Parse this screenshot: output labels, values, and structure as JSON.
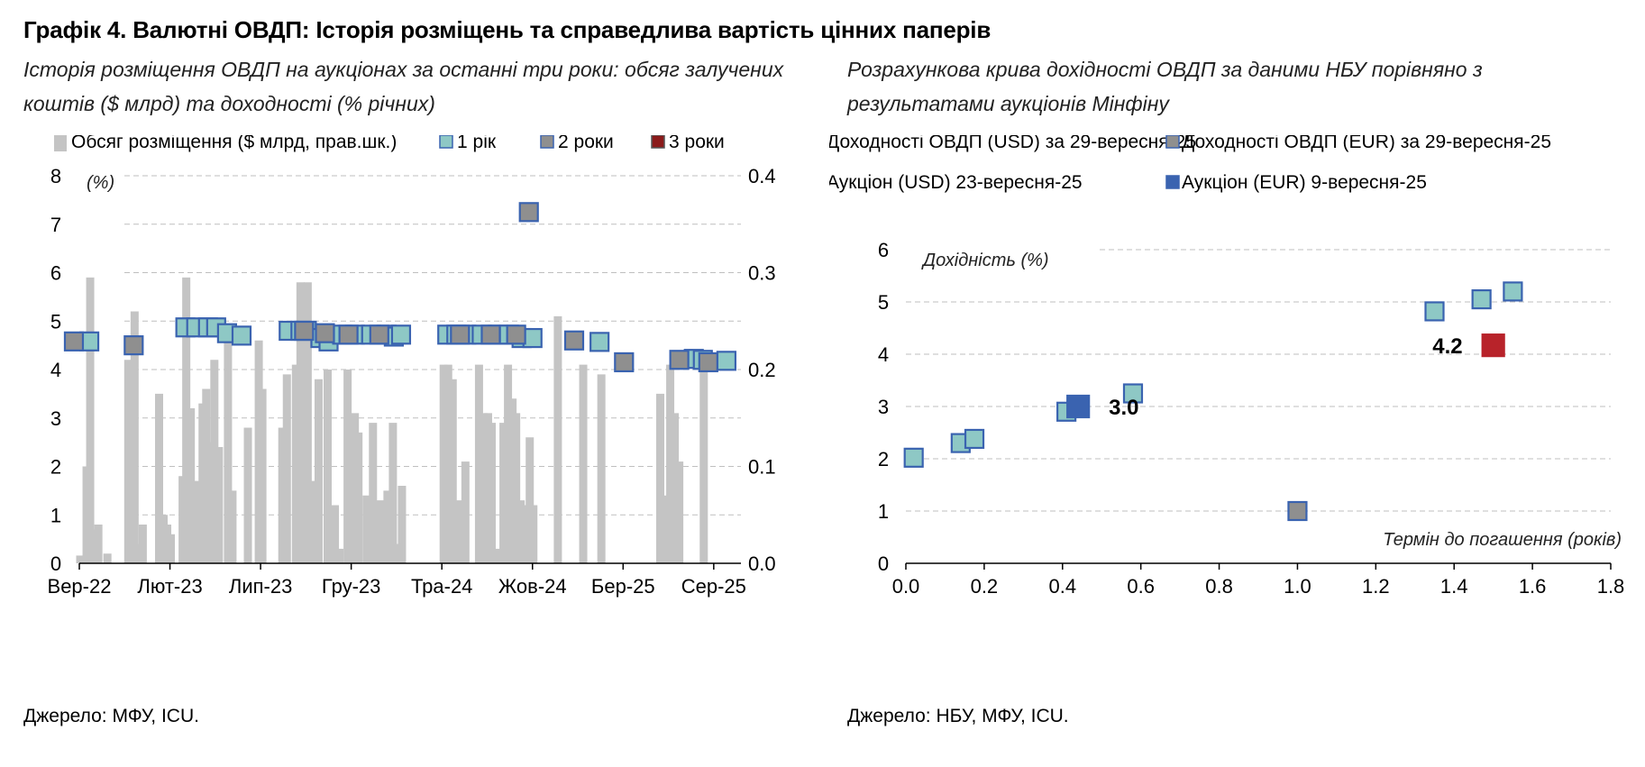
{
  "title": "Графік 4. Валютні ОВДП: Історія розміщень та справедлива вартість цінних паперів",
  "left": {
    "subtitle_line1": "Історія розміщення ОВДП на аукціонах за останні три роки: обсяг залучених",
    "subtitle_line2": "коштів ($ млрд) та доходності (% річних)",
    "source": "Джерело: МФУ, ICU.",
    "colors": {
      "bars": "#c4c4c4",
      "y1": "#8ec8c5",
      "y2": "#8f8f8f",
      "y3": "#8b1a1a",
      "edge": "#3a63b0",
      "grid": "#bfbfbf"
    }
  },
  "right": {
    "subtitle_line1": "Розрахункова крива дохідності ОВДП за даними НБУ порівняно з",
    "subtitle_line2": "результатами аукціонів Мінфіну",
    "source": "Джерело: НБУ, МФУ, ICU.",
    "colors": {
      "usd": "#8ec8c5",
      "eur": "#8f8f8f",
      "auc_usd": "#b8232a",
      "auc_eur": "#3a63b0",
      "edge": "#3a63b0",
      "grid": "#bfbfbf"
    }
  },
  "chart_data": [
    {
      "type": "bar+scatter",
      "legend": [
        "Обсяг розміщення ($ млрд, прав.шк.)",
        "1 рік",
        "2 роки",
        "3 роки"
      ],
      "legend_position": "top",
      "y_left_label": "(%)",
      "y_left_range": [
        0,
        8
      ],
      "y_left_ticks": [
        "0",
        "1",
        "2",
        "3",
        "4",
        "5",
        "6",
        "7",
        "8"
      ],
      "y_right_range": [
        0,
        0.4
      ],
      "y_right_ticks": [
        "0.0",
        "0.1",
        "0.2",
        "0.3",
        "0.4"
      ],
      "x_range": [
        0,
        36.5
      ],
      "x_ticks": [
        {
          "x": 0,
          "label": "Вер-22"
        },
        {
          "x": 5,
          "label": "Лют-23"
        },
        {
          "x": 10,
          "label": "Лип-23"
        },
        {
          "x": 15,
          "label": "Гру-23"
        },
        {
          "x": 20,
          "label": "Тра-24"
        },
        {
          "x": 25,
          "label": "Жов-24"
        },
        {
          "x": 30,
          "label": "Бер-25"
        },
        {
          "x": 35,
          "label": "Сер-25"
        }
      ],
      "grid": "horizontal dashed",
      "volume_bars": [
        {
          "x": 0.05,
          "v": 0.008
        },
        {
          "x": 0.4,
          "v": 0.1
        },
        {
          "x": 0.6,
          "v": 0.295
        },
        {
          "x": 0.85,
          "v": 0.035
        },
        {
          "x": 1.05,
          "v": 0.04
        },
        {
          "x": 1.55,
          "v": 0.01
        },
        {
          "x": 2.7,
          "v": 0.21
        },
        {
          "x": 3.05,
          "v": 0.26
        },
        {
          "x": 3.25,
          "v": 0.02
        },
        {
          "x": 3.5,
          "v": 0.04
        },
        {
          "x": 4.4,
          "v": 0.175
        },
        {
          "x": 4.65,
          "v": 0.05
        },
        {
          "x": 4.85,
          "v": 0.04
        },
        {
          "x": 5.05,
          "v": 0.03
        },
        {
          "x": 5.7,
          "v": 0.09
        },
        {
          "x": 5.9,
          "v": 0.295
        },
        {
          "x": 6.15,
          "v": 0.16
        },
        {
          "x": 6.35,
          "v": 0.015
        },
        {
          "x": 6.55,
          "v": 0.085
        },
        {
          "x": 6.8,
          "v": 0.165
        },
        {
          "x": 7.0,
          "v": 0.18
        },
        {
          "x": 7.2,
          "v": 0.125
        },
        {
          "x": 7.45,
          "v": 0.21
        },
        {
          "x": 7.7,
          "v": 0.12
        },
        {
          "x": 8.2,
          "v": 0.23
        },
        {
          "x": 8.45,
          "v": 0.075
        },
        {
          "x": 9.3,
          "v": 0.14
        },
        {
          "x": 9.9,
          "v": 0.23
        },
        {
          "x": 10.1,
          "v": 0.18
        },
        {
          "x": 11.2,
          "v": 0.14
        },
        {
          "x": 11.45,
          "v": 0.195
        },
        {
          "x": 11.95,
          "v": 0.205
        },
        {
          "x": 12.2,
          "v": 0.29
        },
        {
          "x": 12.6,
          "v": 0.29
        },
        {
          "x": 13.0,
          "v": 0.085
        },
        {
          "x": 13.2,
          "v": 0.19
        },
        {
          "x": 13.7,
          "v": 0.2
        },
        {
          "x": 14.1,
          "v": 0.06
        },
        {
          "x": 14.35,
          "v": 0.015
        },
        {
          "x": 14.8,
          "v": 0.2
        },
        {
          "x": 15.2,
          "v": 0.155
        },
        {
          "x": 15.4,
          "v": 0.135
        },
        {
          "x": 15.85,
          "v": 0.07
        },
        {
          "x": 16.2,
          "v": 0.145
        },
        {
          "x": 16.4,
          "v": 0.02
        },
        {
          "x": 16.6,
          "v": 0.065
        },
        {
          "x": 17.0,
          "v": 0.075
        },
        {
          "x": 17.3,
          "v": 0.145
        },
        {
          "x": 17.55,
          "v": 0.02
        },
        {
          "x": 17.8,
          "v": 0.08
        },
        {
          "x": 20.1,
          "v": 0.205
        },
        {
          "x": 20.35,
          "v": 0.205
        },
        {
          "x": 20.6,
          "v": 0.19
        },
        {
          "x": 21.0,
          "v": 0.065
        },
        {
          "x": 21.3,
          "v": 0.105
        },
        {
          "x": 22.05,
          "v": 0.205
        },
        {
          "x": 22.3,
          "v": 0.155
        },
        {
          "x": 22.55,
          "v": 0.155
        },
        {
          "x": 22.75,
          "v": 0.145
        },
        {
          "x": 23.0,
          "v": 0.015
        },
        {
          "x": 23.4,
          "v": 0.145
        },
        {
          "x": 23.65,
          "v": 0.205
        },
        {
          "x": 23.9,
          "v": 0.17
        },
        {
          "x": 24.1,
          "v": 0.155
        },
        {
          "x": 24.35,
          "v": 0.065
        },
        {
          "x": 24.6,
          "v": 0.06
        },
        {
          "x": 24.85,
          "v": 0.13
        },
        {
          "x": 25.05,
          "v": 0.06
        },
        {
          "x": 26.4,
          "v": 0.255
        },
        {
          "x": 27.8,
          "v": 0.205
        },
        {
          "x": 28.8,
          "v": 0.195
        },
        {
          "x": 32.05,
          "v": 0.175
        },
        {
          "x": 32.35,
          "v": 0.07
        },
        {
          "x": 32.6,
          "v": 0.205
        },
        {
          "x": 32.85,
          "v": 0.155
        },
        {
          "x": 33.1,
          "v": 0.105
        },
        {
          "x": 34.45,
          "v": 0.2
        }
      ],
      "series": [
        {
          "name": "1 рік",
          "points": [
            {
              "x": 0.55,
              "y": 4.58
            },
            {
              "x": 5.85,
              "y": 4.87
            },
            {
              "x": 6.45,
              "y": 4.87
            },
            {
              "x": 7.1,
              "y": 4.87
            },
            {
              "x": 7.55,
              "y": 4.87
            },
            {
              "x": 8.15,
              "y": 4.75
            },
            {
              "x": 8.95,
              "y": 4.7
            },
            {
              "x": 11.55,
              "y": 4.8
            },
            {
              "x": 12.2,
              "y": 4.8
            },
            {
              "x": 12.55,
              "y": 4.8
            },
            {
              "x": 13.3,
              "y": 4.65
            },
            {
              "x": 13.75,
              "y": 4.58
            },
            {
              "x": 14.5,
              "y": 4.72
            },
            {
              "x": 15.2,
              "y": 4.72
            },
            {
              "x": 16.1,
              "y": 4.72
            },
            {
              "x": 16.95,
              "y": 4.72
            },
            {
              "x": 17.35,
              "y": 4.68
            },
            {
              "x": 17.75,
              "y": 4.72
            },
            {
              "x": 20.3,
              "y": 4.72
            },
            {
              "x": 20.8,
              "y": 4.72
            },
            {
              "x": 21.35,
              "y": 4.72
            },
            {
              "x": 22.2,
              "y": 4.72
            },
            {
              "x": 23.1,
              "y": 4.72
            },
            {
              "x": 23.7,
              "y": 4.72
            },
            {
              "x": 24.4,
              "y": 4.65
            },
            {
              "x": 25.0,
              "y": 4.65
            },
            {
              "x": 28.7,
              "y": 4.57
            },
            {
              "x": 33.9,
              "y": 4.22
            },
            {
              "x": 34.4,
              "y": 4.2
            },
            {
              "x": 35.7,
              "y": 4.18
            }
          ]
        },
        {
          "name": "2 роки",
          "points": [
            {
              "x": -0.3,
              "y": 4.58
            },
            {
              "x": 3.0,
              "y": 4.5
            },
            {
              "x": 12.4,
              "y": 4.8
            },
            {
              "x": 13.55,
              "y": 4.75
            },
            {
              "x": 14.85,
              "y": 4.72
            },
            {
              "x": 16.55,
              "y": 4.72
            },
            {
              "x": 21.0,
              "y": 4.72
            },
            {
              "x": 22.7,
              "y": 4.72
            },
            {
              "x": 24.1,
              "y": 4.72
            },
            {
              "x": 24.8,
              "y": 7.25
            },
            {
              "x": 27.3,
              "y": 4.6
            },
            {
              "x": 30.05,
              "y": 4.15
            },
            {
              "x": 33.1,
              "y": 4.2
            },
            {
              "x": 34.7,
              "y": 4.15
            }
          ]
        },
        {
          "name": "3 роки",
          "points": []
        }
      ]
    },
    {
      "type": "scatter",
      "legend": [
        "Доходності ОВДП (USD) за 29-вересня-25",
        "Доходності ОВДП (EUR) за 29-вересня-25",
        "Аукціон (USD) 23-вересня-25",
        "Аукціон (EUR) 9-вересня-25"
      ],
      "legend_position": "top",
      "ylabel": "Дохідність (%)",
      "xlabel": "Термін до погашення (років)",
      "xlim": [
        0,
        1.8
      ],
      "ylim": [
        0,
        6
      ],
      "x_ticks": [
        "0.0",
        "0.2",
        "0.4",
        "0.6",
        "0.8",
        "1.0",
        "1.2",
        "1.4",
        "1.6",
        "1.8"
      ],
      "y_ticks": [
        "0",
        "1",
        "2",
        "3",
        "4",
        "5",
        "6"
      ],
      "grid": "horizontal dashed",
      "series": [
        {
          "name": "Доходності ОВДП (USD) за 29-вересня-25",
          "points": [
            {
              "x": 0.02,
              "y": 2.02
            },
            {
              "x": 0.14,
              "y": 2.3
            },
            {
              "x": 0.175,
              "y": 2.38
            },
            {
              "x": 0.41,
              "y": 2.9
            },
            {
              "x": 0.58,
              "y": 3.25
            },
            {
              "x": 1.35,
              "y": 4.82
            },
            {
              "x": 1.47,
              "y": 5.05
            },
            {
              "x": 1.55,
              "y": 5.2
            }
          ]
        },
        {
          "name": "Доходності ОВДП (EUR) за 29-вересня-25",
          "points": [
            {
              "x": 1.0,
              "y": 1.0
            }
          ]
        },
        {
          "name": "Аукціон (USD) 23-вересня-25",
          "points": [
            {
              "x": 1.5,
              "y": 4.17,
              "label": "4.2"
            }
          ]
        },
        {
          "name": "Аукціон (EUR) 9-вересня-25",
          "points": [
            {
              "x": 0.44,
              "y": 3.0,
              "label": "3.0"
            }
          ]
        }
      ]
    }
  ]
}
